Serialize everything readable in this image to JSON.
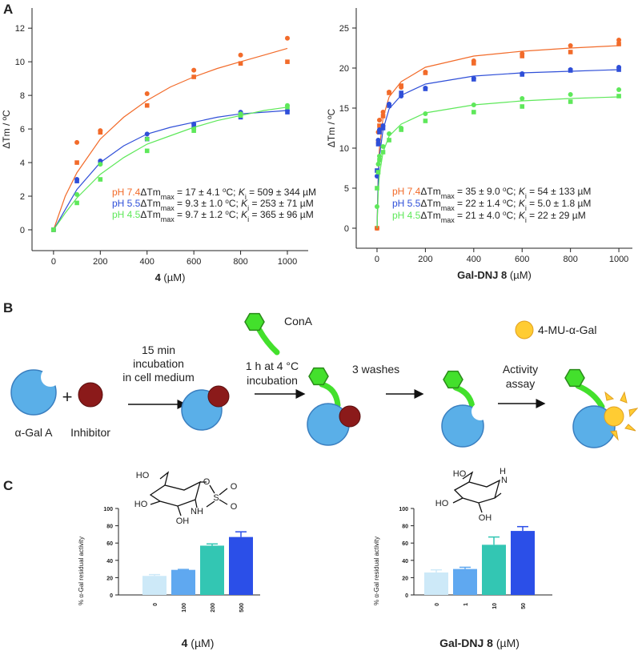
{
  "panel_labels": [
    "A",
    "B",
    "C"
  ],
  "chart_data": [
    {
      "type": "scatter",
      "y_label": "ΔTm / ºC",
      "x_label": {
        "bold": "4",
        "rest": " (µM)"
      },
      "xlim": [
        -92,
        1089
      ],
      "ylim": [
        -1.24,
        13.2
      ],
      "xticks": [
        0,
        200,
        400,
        600,
        800,
        1000
      ],
      "yticks": [
        0,
        2,
        4,
        6,
        8,
        10,
        12
      ],
      "fit_x": [
        0,
        25,
        50,
        100,
        200,
        300,
        400,
        500,
        600,
        700,
        800,
        900,
        1000
      ],
      "series": [
        {
          "name": "pH 7.4",
          "color": "#f26b2a",
          "x": [
            0,
            0,
            100,
            100,
            200,
            200,
            400,
            400,
            600,
            600,
            800,
            800,
            1000,
            1000
          ],
          "values": [
            0,
            0,
            5.2,
            4.0,
            5.9,
            5.8,
            8.1,
            7.4,
            9.5,
            9.1,
            10.4,
            9.9,
            11.4,
            10.0
          ],
          "fit": [
            0,
            1.0,
            2.0,
            3.4,
            5.4,
            6.7,
            7.7,
            8.5,
            9.1,
            9.6,
            10.0,
            10.4,
            10.8
          ],
          "fit_label": [
            "ΔTm",
            "max",
            " = 17 ± 4.1 ",
            "o",
            "C; ",
            "K",
            "i",
            " = 509 ± 344 µM"
          ]
        },
        {
          "name": "pH 5.5",
          "color": "#2f4fd8",
          "x": [
            0,
            0,
            100,
            100,
            200,
            200,
            400,
            400,
            600,
            600,
            800,
            800,
            1000,
            1000
          ],
          "values": [
            0,
            0,
            3.0,
            2.9,
            4.1,
            4.0,
            5.7,
            5.4,
            6.3,
            6.2,
            7.0,
            6.7,
            7.1,
            7.0
          ],
          "fit": [
            0,
            0.6,
            1.2,
            2.4,
            4.0,
            5.0,
            5.7,
            6.1,
            6.4,
            6.7,
            6.9,
            7.0,
            7.1
          ],
          "fit_label": [
            "ΔTm",
            "max",
            " = 9.3 ± 1.0 ",
            "o",
            "C; ",
            "K",
            "i",
            " = 253 ± 71 µM"
          ]
        },
        {
          "name": "pH 4.5",
          "color": "#5ee85a",
          "x": [
            0,
            0,
            100,
            100,
            200,
            200,
            400,
            400,
            600,
            600,
            800,
            800,
            1000,
            1000
          ],
          "values": [
            0,
            0,
            2.1,
            1.6,
            3.9,
            3.0,
            5.4,
            4.7,
            6.0,
            5.9,
            6.9,
            6.8,
            7.4,
            7.3
          ],
          "fit": [
            0,
            0.5,
            1.0,
            1.9,
            3.3,
            4.3,
            5.1,
            5.6,
            6.1,
            6.5,
            6.8,
            7.1,
            7.3
          ],
          "fit_label": [
            "ΔTm",
            "max",
            " = 9.7 ± 1.2 ",
            "o",
            "C; ",
            "K",
            "i",
            " = 365 ± 96 µM"
          ]
        }
      ]
    },
    {
      "type": "scatter",
      "y_label": "ΔTm / ºC",
      "x_label": {
        "bold": "Gal-DNJ 8",
        "rest": " (µM)"
      },
      "xlim": [
        -86,
        1056
      ],
      "ylim": [
        -2.5,
        27.5
      ],
      "xticks": [
        0,
        200,
        400,
        600,
        800,
        1000
      ],
      "yticks": [
        0,
        5,
        10,
        15,
        20,
        25
      ],
      "fit_x": [
        0,
        5,
        10,
        25,
        50,
        100,
        200,
        400,
        600,
        800,
        1000
      ],
      "series": [
        {
          "name": "pH 7.4",
          "color": "#f26b2a",
          "x": [
            0,
            0,
            5,
            5,
            10,
            10,
            25,
            25,
            50,
            50,
            100,
            100,
            200,
            200,
            400,
            400,
            600,
            600,
            800,
            800,
            1000,
            1000
          ],
          "values": [
            0,
            0,
            12,
            10.8,
            13.5,
            12.8,
            14.5,
            14,
            17,
            16.9,
            17.6,
            17.8,
            19.5,
            19.4,
            20.9,
            20.6,
            21.8,
            21.5,
            22.8,
            22.0,
            23.5,
            23.0
          ],
          "fit": [
            0,
            6.5,
            10,
            13.8,
            16.4,
            18.3,
            20.1,
            21.5,
            22.1,
            22.5,
            22.8
          ],
          "fit_label": [
            "ΔTm",
            "max",
            " = 35 ± 9.0 ",
            "o",
            "C; ",
            "K",
            "i",
            " = 54 ± 133 µM"
          ]
        },
        {
          "name": "pH 5.5",
          "color": "#2f4fd8",
          "x": [
            0,
            0,
            5,
            5,
            10,
            10,
            25,
            25,
            50,
            50,
            100,
            100,
            200,
            200,
            400,
            400,
            600,
            600,
            800,
            800,
            1000,
            1000
          ],
          "values": [
            6.5,
            7.2,
            11,
            10.5,
            12.3,
            12,
            12.8,
            12.5,
            15.5,
            15.3,
            16.5,
            16.9,
            17.5,
            17.4,
            18.7,
            18.6,
            19.3,
            19.2,
            19.8,
            19.7,
            20.1,
            19.8
          ],
          "fit": [
            0,
            6.2,
            9.0,
            12.3,
            14.9,
            16.6,
            18.0,
            19.0,
            19.4,
            19.6,
            19.8
          ],
          "fit_label": [
            "ΔTm",
            "max",
            " = 22 ± 1.4 ",
            "o",
            "C; ",
            "K",
            "i",
            " = 5.0 ± 1.8 µM"
          ]
        },
        {
          "name": "pH 4.5",
          "color": "#5ee85a",
          "x": [
            0,
            0,
            5,
            5,
            10,
            10,
            25,
            25,
            50,
            50,
            100,
            100,
            200,
            200,
            400,
            400,
            600,
            600,
            800,
            800,
            1000,
            1000
          ],
          "values": [
            2.7,
            5.0,
            8,
            7,
            9,
            8.5,
            10.2,
            9.5,
            11.8,
            11.0,
            12.5,
            12.3,
            14.3,
            13.4,
            15.4,
            14.5,
            16.2,
            15.2,
            16.7,
            15.8,
            17.3,
            16.5
          ],
          "fit": [
            0,
            4.5,
            6.7,
            9.5,
            11.5,
            13.0,
            14.4,
            15.4,
            15.9,
            16.2,
            16.4
          ],
          "fit_label": [
            "ΔTm",
            "max",
            " = 21 ± 4.0 ",
            "o",
            "C; ",
            "K",
            "i",
            " = 22 ± 29 µM"
          ]
        }
      ]
    },
    {
      "type": "bar",
      "y_label": "% α-Gal residual activity",
      "x_label": {
        "bold": "4",
        "rest": " (µM)"
      },
      "categories": [
        "0",
        "100",
        "200",
        "500"
      ],
      "values": [
        22,
        29,
        57,
        67
      ],
      "errors": [
        1.5,
        0.5,
        2,
        6
      ],
      "colors": [
        "#cde9f8",
        "#5fa8f0",
        "#33c6b3",
        "#2b4fe8"
      ],
      "ylim": [
        0,
        100
      ],
      "yticks": [
        0,
        20,
        40,
        60,
        80,
        100
      ],
      "structure_labels": [
        "HO",
        "HO",
        "OH",
        "O",
        "S",
        "O",
        "O",
        "NH"
      ]
    },
    {
      "type": "bar",
      "y_label": "% α-Gal residual activity",
      "x_label": {
        "bold": "Gal-DNJ 8",
        "rest": " (µM)"
      },
      "categories": [
        "0",
        "1",
        "10",
        "50"
      ],
      "values": [
        26,
        30,
        58,
        74
      ],
      "errors": [
        3,
        2,
        9,
        5
      ],
      "colors": [
        "#cde9f8",
        "#5fa8f0",
        "#33c6b3",
        "#2b4fe8"
      ],
      "ylim": [
        0,
        100
      ],
      "yticks": [
        0,
        20,
        40,
        60,
        80,
        100
      ],
      "structure_labels": [
        "HO",
        "HO",
        "OH",
        "H",
        "N"
      ]
    }
  ],
  "diagram": {
    "enzyme": "α-Gal A",
    "plus": "+",
    "inhibitor": "Inhibitor",
    "step1": [
      "15 min",
      "incubation",
      "in cell medium"
    ],
    "cona": "ConA",
    "step2": [
      "1 h at 4 °C",
      "incubation"
    ],
    "step3": "3 washes",
    "step4": [
      "Activity",
      "assay"
    ],
    "substrate": "4-MU-α-Gal"
  }
}
